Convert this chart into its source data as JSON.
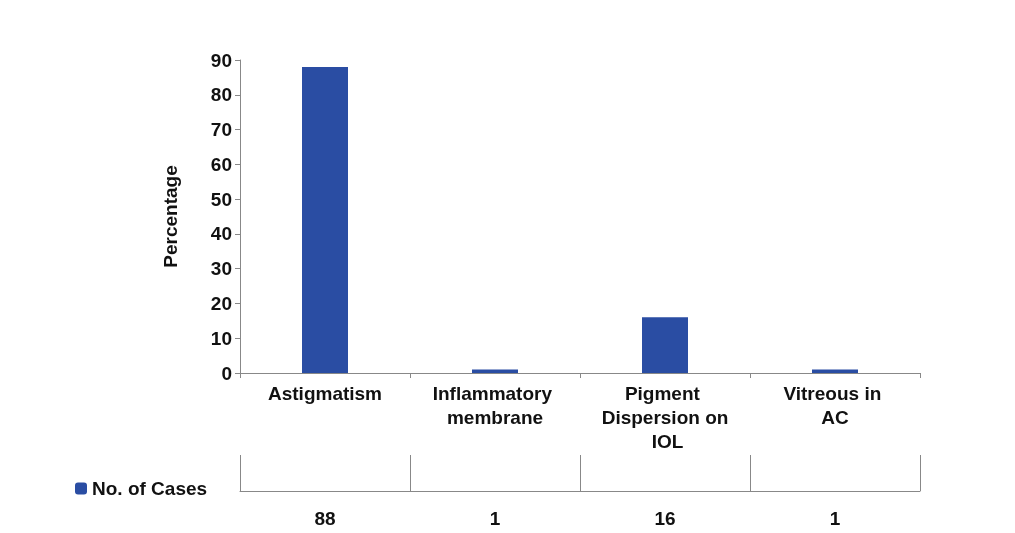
{
  "chart_data": {
    "type": "bar",
    "ylabel": "Percentage",
    "categories": [
      "Astigmatism",
      "Inflammatory membrane",
      "Pigment Dispersion on IOL",
      "Vitreous in AC"
    ],
    "series": [
      {
        "name": "No. of Cases",
        "color": "#2a4da3",
        "values": [
          88,
          1,
          16,
          1
        ]
      }
    ],
    "ylim": [
      0,
      90
    ],
    "yticks": [
      0,
      10,
      20,
      30,
      40,
      50,
      60,
      70,
      80,
      90
    ],
    "grid": false,
    "legend": "bottom left",
    "data_labels": true
  }
}
